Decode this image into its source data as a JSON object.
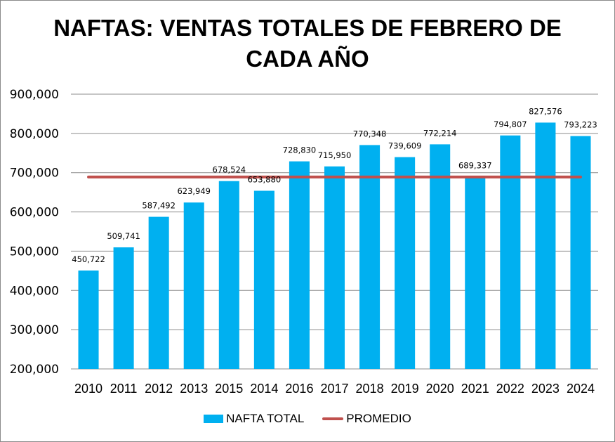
{
  "chart_data": {
    "type": "bar",
    "title": "NAFTAS: VENTAS TOTALES DE FEBRERO DE CADA AÑO",
    "title_lines": [
      "NAFTAS: VENTAS TOTALES DE FEBRERO DE",
      "CADA AÑO"
    ],
    "xlabel": "",
    "ylabel": "",
    "ylim": [
      200000,
      900000
    ],
    "yticks": [
      200000,
      300000,
      400000,
      500000,
      600000,
      700000,
      800000,
      900000
    ],
    "ytick_labels": [
      "200,000",
      "300,000",
      "400,000",
      "500,000",
      "600,000",
      "700,000",
      "800,000",
      "900,000"
    ],
    "grid": true,
    "categories": [
      "2010",
      "2011",
      "2012",
      "2013",
      "2015",
      "2014",
      "2016",
      "2017",
      "2018",
      "2019",
      "2020",
      "2021",
      "2022",
      "2023",
      "2024"
    ],
    "series": [
      {
        "name": "NAFTA TOTAL",
        "type": "bar",
        "color": "#00b0f0",
        "values": [
          450722,
          509741,
          587492,
          623949,
          678524,
          653880,
          728830,
          715950,
          770348,
          739609,
          772214,
          689337,
          794807,
          827576,
          793223
        ],
        "data_labels": [
          "450,722",
          "509,741",
          "587,492",
          "623,949",
          "678,524",
          "653,880",
          "728,830",
          "715,950",
          "770,348",
          "739,609",
          "772,214",
          "689,337",
          "794,807",
          "827,576",
          "793,223"
        ]
      },
      {
        "name": "PROMEDIO",
        "type": "line",
        "color": "#c0504d",
        "value": 689080
      }
    ],
    "legend": {
      "position": "bottom",
      "entries": [
        {
          "label": "NAFTA TOTAL",
          "color": "#00b0f0",
          "kind": "bar"
        },
        {
          "label": "PROMEDIO",
          "color": "#c0504d",
          "kind": "line"
        }
      ]
    }
  }
}
